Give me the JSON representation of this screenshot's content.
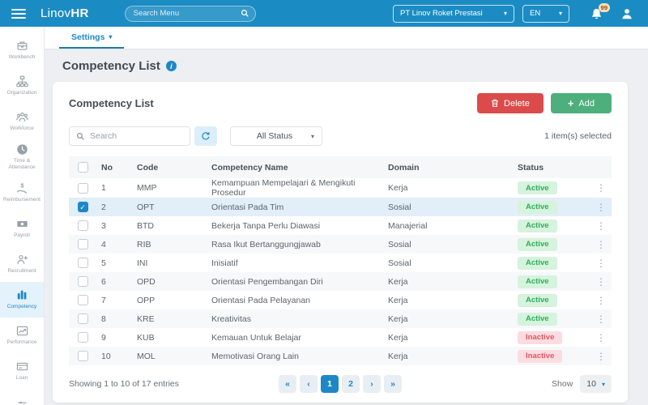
{
  "colors": {
    "navbar": "#1b8cc3",
    "primary": "#1e88c7",
    "danger": "#dc4b4b",
    "success": "#4daf7c",
    "active_badge_bg": "#d6f3dd",
    "active_badge_text": "#2fae5f",
    "inactive_badge_bg": "#fbdce0",
    "inactive_badge_text": "#e05664",
    "selected_row_bg": "#e2eef8"
  },
  "icons": {
    "caret-down-icon": "▾",
    "chevron-first-icon": "«",
    "chevron-prev-icon": "‹",
    "chevron-next-icon": "›",
    "chevron-last-icon": "»",
    "kebab-menu-icon": "⋮",
    "check-icon": "✓",
    "plus-icon": "+",
    "info-icon": "i"
  },
  "navbar": {
    "brand_normal": "Linov",
    "brand_bold": "HR",
    "search_placeholder": "Search Menu",
    "company_selector": "PT Linov Roket Prestasi",
    "language_selector": "EN",
    "notification_count": "99"
  },
  "sidebar": {
    "items": [
      {
        "label": "Workbench",
        "icon": "briefcase-icon",
        "active": false
      },
      {
        "label": "Organization",
        "icon": "org-chart-icon",
        "active": false
      },
      {
        "label": "Workforce",
        "icon": "people-icon",
        "active": false
      },
      {
        "label": "Time & Attendance",
        "icon": "clock-icon",
        "active": false
      },
      {
        "label": "Reimbursement",
        "icon": "money-hand-icon",
        "active": false
      },
      {
        "label": "Payroll",
        "icon": "banknote-icon",
        "active": false
      },
      {
        "label": "Recruitment",
        "icon": "person-add-icon",
        "active": false
      },
      {
        "label": "Competency",
        "icon": "bar-chart-icon",
        "active": true
      },
      {
        "label": "Performance",
        "icon": "line-chart-icon",
        "active": false
      },
      {
        "label": "Loan",
        "icon": "card-icon",
        "active": false
      },
      {
        "label": "",
        "icon": "sliders-icon",
        "active": false
      }
    ]
  },
  "tabs": {
    "settings_label": "Settings"
  },
  "page": {
    "title": "Competency List"
  },
  "card": {
    "title": "Competency List",
    "delete_label": "Delete",
    "add_label": "Add",
    "search_placeholder": "Search",
    "status_filter_value": "All Status",
    "selection_text": "1 item(s) selected"
  },
  "table": {
    "headers": {
      "no": "No",
      "code": "Code",
      "name": "Competency Name",
      "domain": "Domain",
      "status": "Status"
    },
    "rows": [
      {
        "no": "1",
        "code": "MMP",
        "name": "Kemampuan Mempelajari & Mengikuti Prosedur",
        "domain": "Kerja",
        "status": "Active",
        "checked": false
      },
      {
        "no": "2",
        "code": "OPT",
        "name": "Orientasi Pada Tim",
        "domain": "Sosial",
        "status": "Active",
        "checked": true
      },
      {
        "no": "3",
        "code": "BTD",
        "name": "Bekerja Tanpa Perlu Diawasi",
        "domain": "Manajerial",
        "status": "Active",
        "checked": false
      },
      {
        "no": "4",
        "code": "RIB",
        "name": "Rasa Ikut Bertanggungjawab",
        "domain": "Sosial",
        "status": "Active",
        "checked": false
      },
      {
        "no": "5",
        "code": "INI",
        "name": "Inisiatif",
        "domain": "Sosial",
        "status": "Active",
        "checked": false
      },
      {
        "no": "6",
        "code": "OPD",
        "name": "Orientasi Pengembangan Diri",
        "domain": "Kerja",
        "status": "Active",
        "checked": false
      },
      {
        "no": "7",
        "code": "OPP",
        "name": "Orientasi Pada Pelayanan",
        "domain": "Kerja",
        "status": "Active",
        "checked": false
      },
      {
        "no": "8",
        "code": "KRE",
        "name": "Kreativitas",
        "domain": "Kerja",
        "status": "Active",
        "checked": false
      },
      {
        "no": "9",
        "code": "KUB",
        "name": "Kemauan Untuk Belajar",
        "domain": "Kerja",
        "status": "Inactive",
        "checked": false
      },
      {
        "no": "10",
        "code": "MOL",
        "name": "Memotivasi Orang Lain",
        "domain": "Kerja",
        "status": "Inactive",
        "checked": false
      }
    ]
  },
  "footer": {
    "showing_text": "Showing 1 to 10 of 17 entries",
    "pages": [
      "1",
      "2"
    ],
    "active_page": "1",
    "show_label": "Show",
    "page_size": "10"
  }
}
